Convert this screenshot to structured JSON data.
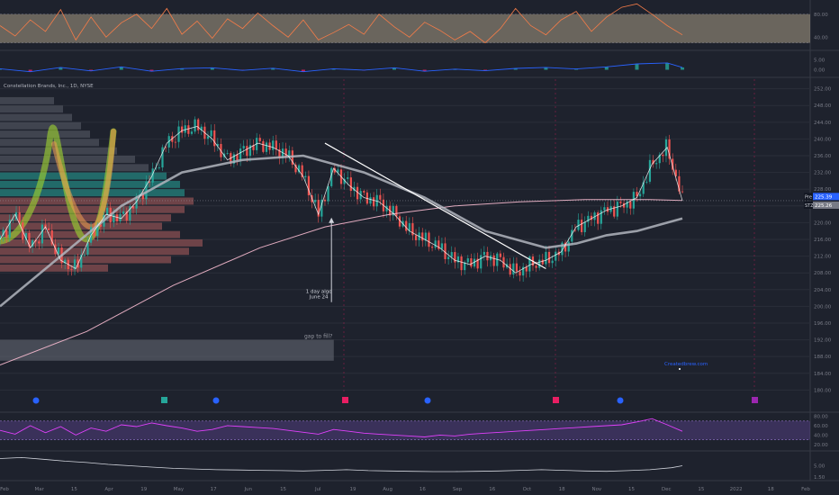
{
  "chart_data": {
    "type": "line",
    "title": "Constellation Brands, Inc., 1D, NYSE",
    "price_axis": {
      "ticks": [
        "252.00",
        "248.00",
        "244.00",
        "240.00",
        "236.00",
        "232.00",
        "228.00",
        "224.00",
        "220.00",
        "216.00",
        "212.00",
        "208.00",
        "204.00",
        "200.00",
        "196.00",
        "192.00",
        "188.00",
        "184.00",
        "180.00"
      ],
      "ylim": [
        179,
        253
      ]
    },
    "price_labels": [
      {
        "tag": "Pre",
        "value": "225.39",
        "color": "#2962ff"
      },
      {
        "tag": "STZ",
        "value": "225.26",
        "color": "#787b86"
      }
    ],
    "time_axis": {
      "labels": [
        "Feb",
        "Mar",
        "15",
        "Apr",
        "19",
        "May",
        "17",
        "Jun",
        "15",
        "Jul",
        "19",
        "Aug",
        "16",
        "Sep",
        "16",
        "Oct",
        "18",
        "Nov",
        "15",
        "Dec",
        "15",
        "2022",
        "18",
        "Feb"
      ],
      "range_days": [
        0,
        374
      ]
    },
    "price_series": {
      "name": "STZ",
      "x_days": [
        0,
        7,
        14,
        21,
        28,
        35,
        42,
        49,
        56,
        63,
        70,
        77,
        84,
        91,
        98,
        105,
        112,
        119,
        126,
        133,
        140,
        147,
        154,
        161,
        168,
        175,
        182,
        189,
        196,
        203,
        210,
        217,
        224,
        231,
        238,
        245,
        252,
        259,
        266,
        273,
        280,
        287,
        294,
        301,
        308,
        315
      ],
      "y": [
        216,
        222,
        214,
        219,
        211,
        209,
        217,
        222,
        221,
        225,
        231,
        239,
        242,
        243,
        240,
        235,
        237,
        239,
        238,
        236,
        231,
        222,
        233,
        229,
        226,
        225,
        222,
        218,
        216,
        214,
        211,
        210,
        212,
        211,
        208,
        210,
        211,
        213,
        219,
        221,
        223,
        224,
        226,
        234,
        238,
        225.26
      ]
    },
    "ma_slow": {
      "x_days": [
        0,
        28,
        56,
        84,
        112,
        140,
        168,
        196,
        224,
        252,
        266,
        280,
        294,
        308,
        315
      ],
      "y": [
        200,
        212,
        224,
        232,
        235,
        236,
        232,
        226,
        218,
        214,
        215,
        217,
        218,
        220,
        221
      ]
    },
    "ma_long": {
      "x_days": [
        0,
        40,
        80,
        120,
        150,
        180,
        210,
        240,
        270,
        300,
        315
      ],
      "y": [
        186,
        194,
        205,
        214,
        219,
        222,
        224,
        225,
        225.5,
        225.5,
        225.3
      ]
    },
    "trendline": {
      "x_days": [
        150,
        252
      ],
      "y": [
        239,
        209
      ]
    },
    "gap_zone": {
      "label": "gap to fill?",
      "x_days": [
        0,
        152
      ],
      "y": [
        187,
        192
      ]
    },
    "annotation": {
      "line1": "1 day algo",
      "line2": "June 24",
      "x_day": 153,
      "y_from": 201,
      "y_to": 221
    },
    "rsi_top": {
      "ticks": [
        "80.00",
        "40.00"
      ],
      "range": [
        20,
        100
      ],
      "band": [
        30,
        80
      ],
      "x_days": [
        0,
        7,
        14,
        21,
        28,
        35,
        42,
        49,
        56,
        63,
        70,
        77,
        84,
        91,
        98,
        105,
        112,
        119,
        126,
        133,
        140,
        147,
        154,
        161,
        168,
        175,
        182,
        189,
        196,
        203,
        210,
        217,
        224,
        231,
        238,
        245,
        252,
        259,
        266,
        273,
        280,
        287,
        294,
        301,
        308,
        315
      ],
      "y": [
        60,
        42,
        70,
        50,
        88,
        35,
        75,
        40,
        65,
        80,
        55,
        90,
        45,
        68,
        38,
        72,
        55,
        82,
        60,
        40,
        70,
        35,
        48,
        62,
        45,
        80,
        58,
        40,
        66,
        52,
        35,
        50,
        30,
        55,
        90,
        60,
        44,
        70,
        85,
        50,
        75,
        92,
        98,
        80,
        60,
        44
      ]
    },
    "macd": {
      "ticks": [
        "5.00",
        "0.00"
      ],
      "range": [
        -3,
        9
      ],
      "x_days": [
        0,
        14,
        28,
        42,
        56,
        70,
        84,
        98,
        112,
        126,
        140,
        154,
        168,
        182,
        196,
        210,
        224,
        238,
        252,
        266,
        280,
        294,
        308,
        315
      ],
      "y": [
        0.5,
        -1.0,
        1.2,
        -0.6,
        1.5,
        -0.8,
        0.6,
        1.0,
        -0.3,
        0.8,
        -1.0,
        0.5,
        -0.2,
        1.0,
        -0.8,
        0.3,
        -0.5,
        0.7,
        1.2,
        0.4,
        1.5,
        3.0,
        3.5,
        1.2
      ]
    },
    "rsi_bottom": {
      "ticks": [
        "80.00",
        "60.00",
        "40.00",
        "20.00"
      ],
      "range": [
        10,
        85
      ],
      "band": [
        30,
        70
      ],
      "x_days": [
        0,
        7,
        14,
        21,
        28,
        35,
        42,
        49,
        56,
        63,
        70,
        77,
        84,
        91,
        98,
        105,
        112,
        119,
        126,
        133,
        140,
        147,
        154,
        161,
        168,
        175,
        182,
        189,
        196,
        203,
        210,
        217,
        224,
        231,
        238,
        245,
        252,
        259,
        266,
        273,
        280,
        287,
        294,
        301,
        308,
        315
      ],
      "y": [
        50,
        42,
        60,
        45,
        58,
        40,
        55,
        48,
        62,
        58,
        66,
        60,
        55,
        48,
        52,
        60,
        58,
        56,
        54,
        50,
        46,
        42,
        52,
        48,
        44,
        42,
        40,
        38,
        36,
        40,
        38,
        42,
        44,
        46,
        48,
        50,
        52,
        54,
        56,
        58,
        60,
        62,
        68,
        75,
        62,
        48
      ]
    },
    "volatility": {
      "ticks": [
        "5.00",
        "1.50"
      ],
      "range": [
        1,
        9
      ],
      "x_days": [
        0,
        10,
        20,
        30,
        40,
        50,
        60,
        70,
        80,
        90,
        100,
        110,
        120,
        130,
        140,
        150,
        160,
        170,
        180,
        190,
        200,
        210,
        220,
        230,
        240,
        250,
        260,
        270,
        280,
        290,
        300,
        310,
        315
      ],
      "y": [
        7.2,
        7.5,
        7.0,
        6.4,
        6.0,
        5.4,
        5.0,
        4.6,
        4.2,
        4.0,
        3.8,
        3.7,
        3.6,
        3.5,
        3.4,
        3.6,
        3.8,
        3.5,
        3.4,
        3.3,
        3.2,
        3.2,
        3.3,
        3.4,
        3.6,
        3.8,
        3.6,
        3.4,
        3.3,
        3.5,
        3.8,
        4.4,
        5.0
      ]
    }
  },
  "watermark": "Createdbrew.com"
}
